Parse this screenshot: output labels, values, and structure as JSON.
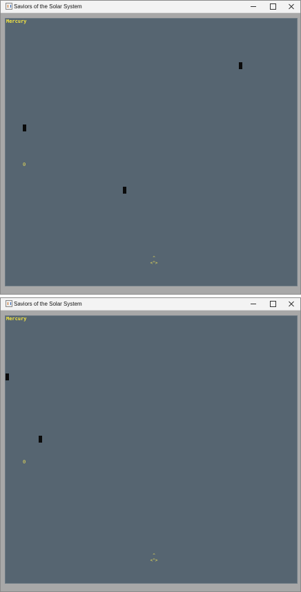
{
  "windows": [
    {
      "title": "Saviors of the Solar System",
      "planet": "Mercury",
      "score": "0",
      "ship": {
        "top": "^",
        "bottom": "<\">"
      }
    },
    {
      "title": "Saviors of the Solar System",
      "planet": "Mercury",
      "score": "0",
      "ship": {
        "top": "^",
        "bottom": "<\">"
      }
    }
  ],
  "colors": {
    "field": "#566571",
    "accent_text": "#f5e642",
    "enemy": "#0b0b0b",
    "frame": "#a8a8a8"
  },
  "icons": [
    "java-app-icon",
    "minimize-icon",
    "maximize-icon",
    "close-icon"
  ]
}
